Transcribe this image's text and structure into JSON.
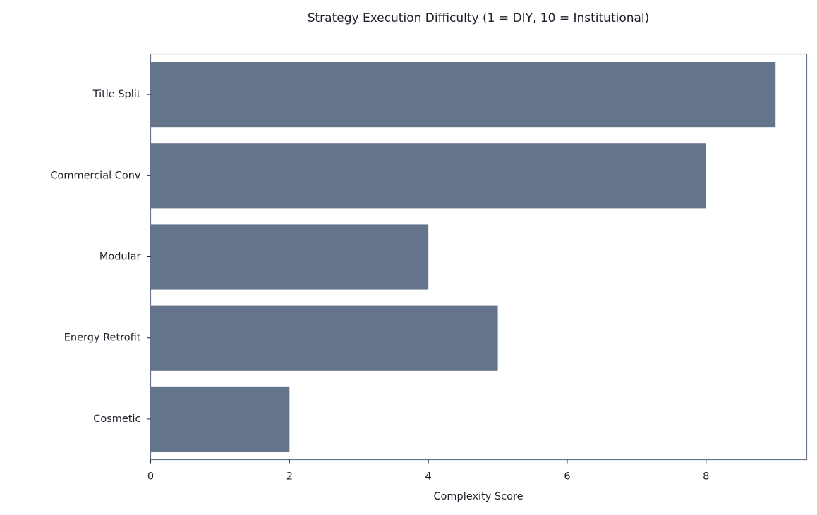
{
  "chart_data": {
    "type": "barh",
    "title": "Strategy Execution Difficulty (1 = DIY, 10 = Institutional)",
    "xlabel": "Complexity Score",
    "categories": [
      "Title Split",
      "Commercial Conv",
      "Modular",
      "Energy Retrofit",
      "Cosmetic"
    ],
    "values": [
      9,
      8,
      4,
      5,
      2
    ],
    "color": "#64748b",
    "xlim": [
      0,
      9.45
    ],
    "xticks": [
      0,
      2,
      4,
      6,
      8
    ],
    "grid": false
  }
}
